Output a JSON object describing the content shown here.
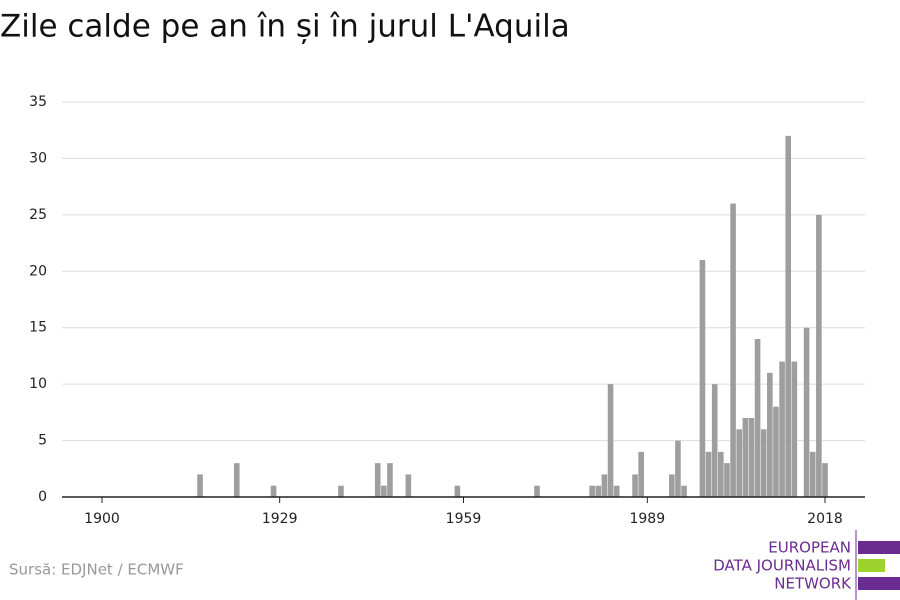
{
  "chart_data": {
    "type": "bar",
    "title": "Zile calde pe an în și în jurul L'Aquila",
    "source": "Sursă: EDJNet / ECMWF",
    "logo": [
      "EUROPEAN",
      "DATA JOURNALISM",
      "NETWORK"
    ],
    "color": "#9e9e9e",
    "grid": true,
    "ylim": [
      0,
      35
    ],
    "yticks": [
      0,
      5,
      10,
      15,
      20,
      25,
      30,
      35
    ],
    "categories": [
      "1900",
      null,
      null,
      null,
      null,
      null,
      null,
      null,
      null,
      null,
      null,
      null,
      null,
      null,
      null,
      null,
      null,
      null,
      null,
      null,
      null,
      null,
      null,
      null,
      null,
      null,
      null,
      null,
      null,
      "1929",
      null,
      null,
      null,
      null,
      null,
      null,
      null,
      null,
      null,
      null,
      null,
      null,
      null,
      null,
      null,
      null,
      null,
      null,
      null,
      null,
      null,
      null,
      null,
      null,
      null,
      null,
      null,
      null,
      null,
      "1959",
      null,
      null,
      null,
      null,
      null,
      null,
      null,
      null,
      null,
      null,
      null,
      null,
      null,
      null,
      null,
      null,
      null,
      null,
      null,
      null,
      null,
      null,
      null,
      null,
      null,
      null,
      null,
      null,
      null,
      "1989",
      null,
      null,
      null,
      null,
      null,
      null,
      null,
      null,
      null,
      null,
      null,
      null,
      null,
      null,
      null,
      null,
      null,
      null,
      null,
      null,
      null,
      null,
      null,
      null,
      null,
      null,
      null,
      null,
      "2018"
    ],
    "values": [
      0,
      0,
      0,
      0,
      0,
      0,
      0,
      0,
      0,
      0,
      0,
      0,
      0,
      0,
      0,
      0,
      2,
      0,
      0,
      0,
      0,
      0,
      3,
      0,
      0,
      0,
      0,
      0,
      1,
      0,
      0,
      0,
      0,
      0,
      0,
      0,
      0,
      0,
      0,
      1,
      0,
      0,
      0,
      0,
      0,
      3,
      1,
      3,
      0,
      0,
      2,
      0,
      0,
      0,
      0,
      0,
      0,
      0,
      1,
      0,
      0,
      0,
      0,
      0,
      0,
      0,
      0,
      0,
      0,
      0,
      0,
      1,
      0,
      0,
      0,
      0,
      0,
      0,
      0,
      0,
      1,
      1,
      2,
      10,
      1,
      0,
      0,
      2,
      4,
      0,
      0,
      0,
      0,
      2,
      5,
      1,
      0,
      0,
      21,
      4,
      10,
      4,
      3,
      26,
      6,
      7,
      7,
      14,
      6,
      11,
      8,
      12,
      32,
      12,
      0,
      15,
      4,
      25,
      3
    ]
  }
}
